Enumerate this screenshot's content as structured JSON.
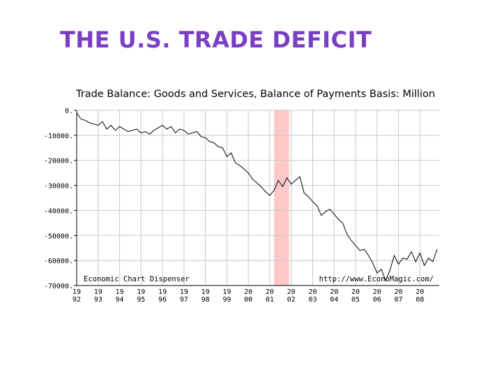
{
  "slide": {
    "title": "THE U.S. TRADE DEFICIT"
  },
  "chart_data": {
    "type": "line",
    "title": "Trade Balance: Goods and Services, Balance of Payments Basis: Million",
    "xlabel": "",
    "ylabel": "",
    "xlim": [
      1992,
      2008.9
    ],
    "ylim": [
      -70000,
      0
    ],
    "y_ticks": [
      {
        "value": 0,
        "label": "0."
      },
      {
        "value": -10000,
        "label": "-10000."
      },
      {
        "value": -20000,
        "label": "-20000."
      },
      {
        "value": -30000,
        "label": "-30000."
      },
      {
        "value": -40000,
        "label": "-40000."
      },
      {
        "value": -50000,
        "label": "-50000."
      },
      {
        "value": -60000,
        "label": "-60000."
      },
      {
        "value": -70000,
        "label": "-70000."
      }
    ],
    "x_ticks": [
      {
        "value": 1992,
        "top": "19",
        "bottom": "92"
      },
      {
        "value": 1993,
        "top": "19",
        "bottom": "93"
      },
      {
        "value": 1994,
        "top": "19",
        "bottom": "94"
      },
      {
        "value": 1995,
        "top": "19",
        "bottom": "95"
      },
      {
        "value": 1996,
        "top": "19",
        "bottom": "96"
      },
      {
        "value": 1997,
        "top": "19",
        "bottom": "97"
      },
      {
        "value": 1998,
        "top": "19",
        "bottom": "98"
      },
      {
        "value": 1999,
        "top": "19",
        "bottom": "99"
      },
      {
        "value": 2000,
        "top": "20",
        "bottom": "00"
      },
      {
        "value": 2001,
        "top": "20",
        "bottom": "01"
      },
      {
        "value": 2002,
        "top": "20",
        "bottom": "02"
      },
      {
        "value": 2003,
        "top": "20",
        "bottom": "03"
      },
      {
        "value": 2004,
        "top": "20",
        "bottom": "04"
      },
      {
        "value": 2005,
        "top": "20",
        "bottom": "05"
      },
      {
        "value": 2006,
        "top": "20",
        "bottom": "06"
      },
      {
        "value": 2007,
        "top": "20",
        "bottom": "07"
      },
      {
        "value": 2008,
        "top": "20",
        "bottom": "08"
      }
    ],
    "grid": true,
    "recession_band": {
      "start": 2001.2,
      "end": 2001.9,
      "color": "#ffc8c8"
    },
    "annotations": [
      {
        "text": "Economic Chart Dispenser",
        "position": "bottom-left"
      },
      {
        "text": "http://www.EconoMagic.com/",
        "position": "bottom-right"
      }
    ],
    "series": [
      {
        "color": "#000000",
        "x": [
          1992.0,
          1992.2,
          1992.4,
          1992.6,
          1992.8,
          1993.0,
          1993.2,
          1993.4,
          1993.6,
          1993.8,
          1994.0,
          1994.2,
          1994.4,
          1994.6,
          1994.8,
          1995.0,
          1995.2,
          1995.4,
          1995.6,
          1995.8,
          1996.0,
          1996.2,
          1996.4,
          1996.6,
          1996.8,
          1997.0,
          1997.2,
          1997.4,
          1997.6,
          1997.8,
          1998.0,
          1998.2,
          1998.4,
          1998.6,
          1998.8,
          1999.0,
          1999.2,
          1999.4,
          1999.6,
          1999.8,
          2000.0,
          2000.2,
          2000.4,
          2000.6,
          2000.8,
          2001.0,
          2001.2,
          2001.4,
          2001.6,
          2001.8,
          2002.0,
          2002.2,
          2002.4,
          2002.6,
          2002.8,
          2003.0,
          2003.2,
          2003.4,
          2003.6,
          2003.8,
          2004.0,
          2004.2,
          2004.4,
          2004.6,
          2004.8,
          2005.0,
          2005.2,
          2005.4,
          2005.6,
          2005.8,
          2006.0,
          2006.2,
          2006.4,
          2006.6,
          2006.8,
          2007.0,
          2007.2,
          2007.4,
          2007.6,
          2007.8,
          2008.0,
          2008.2,
          2008.4,
          2008.6,
          2008.8
        ],
        "y": [
          -1000,
          -3500,
          -4000,
          -5000,
          -5500,
          -6000,
          -4500,
          -7500,
          -6000,
          -8000,
          -6500,
          -7500,
          -8500,
          -8000,
          -7500,
          -9000,
          -8500,
          -9500,
          -8000,
          -7000,
          -6000,
          -7500,
          -6500,
          -9000,
          -7500,
          -8000,
          -9500,
          -9000,
          -8500,
          -10500,
          -11000,
          -12500,
          -13000,
          -14500,
          -15000,
          -18500,
          -17000,
          -21000,
          -22000,
          -23500,
          -25000,
          -27500,
          -29000,
          -30500,
          -32500,
          -34000,
          -32000,
          -28000,
          -30500,
          -27000,
          -29500,
          -28000,
          -26500,
          -33000,
          -34500,
          -36500,
          -38000,
          -42000,
          -40500,
          -39500,
          -41500,
          -43500,
          -45000,
          -49500,
          -52000,
          -54000,
          -56000,
          -55500,
          -58000,
          -61000,
          -65000,
          -63500,
          -68000,
          -64000,
          -58000,
          -61500,
          -59000,
          -59500,
          -56500,
          -60500,
          -57000,
          -62000,
          -59000,
          -60500,
          -55500
        ]
      }
    ]
  }
}
